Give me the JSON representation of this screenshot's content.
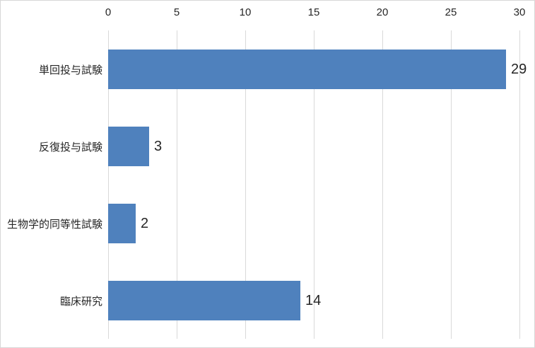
{
  "chart_data": {
    "type": "bar",
    "orientation": "horizontal",
    "title": "",
    "categories": [
      "単回投与試験",
      "反復投与試験",
      "生物学的同等性試験",
      "臨床研究"
    ],
    "values": [
      29,
      3,
      2,
      14
    ],
    "value_labels": [
      "29",
      "3",
      "2",
      "14"
    ],
    "x_ticks": [
      "0",
      "5",
      "10",
      "15",
      "20",
      "25",
      "30"
    ],
    "xlim": [
      0,
      30
    ],
    "axis_position": "top",
    "grid": true,
    "legend_position": "none",
    "xlabel": "",
    "ylabel": "",
    "colors": {
      "bar": "#4F81BD",
      "gridline": "#D9D9D9",
      "text": "#262626",
      "background": "#FFFFFF",
      "frame_border": "#D7D7D7"
    }
  }
}
